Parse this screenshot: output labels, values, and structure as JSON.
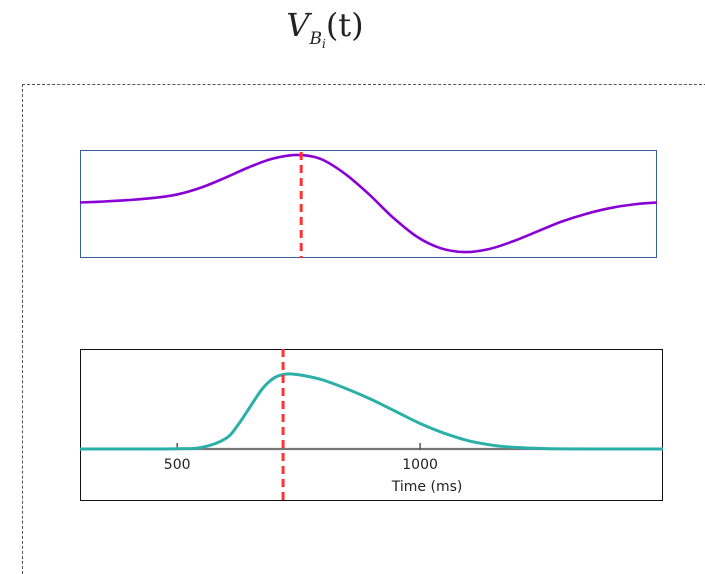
{
  "title": {
    "main": "V",
    "sub_letter": "B",
    "sub_index": "i",
    "arg": "(t)"
  },
  "chart_data": [
    {
      "type": "line",
      "panel": "top",
      "series": [
        {
          "color": "#8a00d4",
          "x": [
            300,
            350,
            400,
            450,
            500,
            550,
            600,
            650,
            700,
            750,
            800,
            850,
            900,
            950,
            1000,
            1050,
            1100,
            1150,
            1200,
            1250,
            1300,
            1350,
            1400,
            1450,
            1500
          ],
          "y": [
            0.02,
            0.04,
            0.07,
            0.11,
            0.18,
            0.32,
            0.52,
            0.74,
            0.92,
            1.0,
            0.92,
            0.62,
            0.2,
            -0.28,
            -0.68,
            -0.92,
            -1.0,
            -0.94,
            -0.78,
            -0.58,
            -0.38,
            -0.22,
            -0.1,
            -0.02,
            0.02
          ]
        }
      ],
      "marker_x": 760,
      "marker_color": "#ff3333",
      "xlim": [
        300,
        1500
      ],
      "ylim": [
        -1.04,
        1.06
      ]
    },
    {
      "type": "line",
      "panel": "bottom",
      "series": [
        {
          "color": "#2ab0a8",
          "x": [
            300,
            400,
            500,
            550,
            600,
            625,
            650,
            675,
            700,
            725,
            750,
            775,
            800,
            850,
            900,
            950,
            1000,
            1050,
            1100,
            1150,
            1200,
            1250,
            1300,
            1400,
            1500
          ],
          "y": [
            0,
            0,
            0.004,
            0.02,
            0.14,
            0.32,
            0.56,
            0.8,
            0.95,
            1.0,
            0.99,
            0.96,
            0.92,
            0.8,
            0.66,
            0.5,
            0.34,
            0.21,
            0.11,
            0.05,
            0.02,
            0.006,
            0.001,
            0,
            0
          ]
        }
      ],
      "marker_x": 718,
      "marker_color": "#ff3333",
      "xticks": [
        500,
        1000
      ],
      "xticklabels": [
        "500",
        "1000"
      ],
      "xlabel": "Time (ms)",
      "xlim": [
        300,
        1500
      ],
      "ylim": [
        0,
        1.0
      ]
    }
  ]
}
